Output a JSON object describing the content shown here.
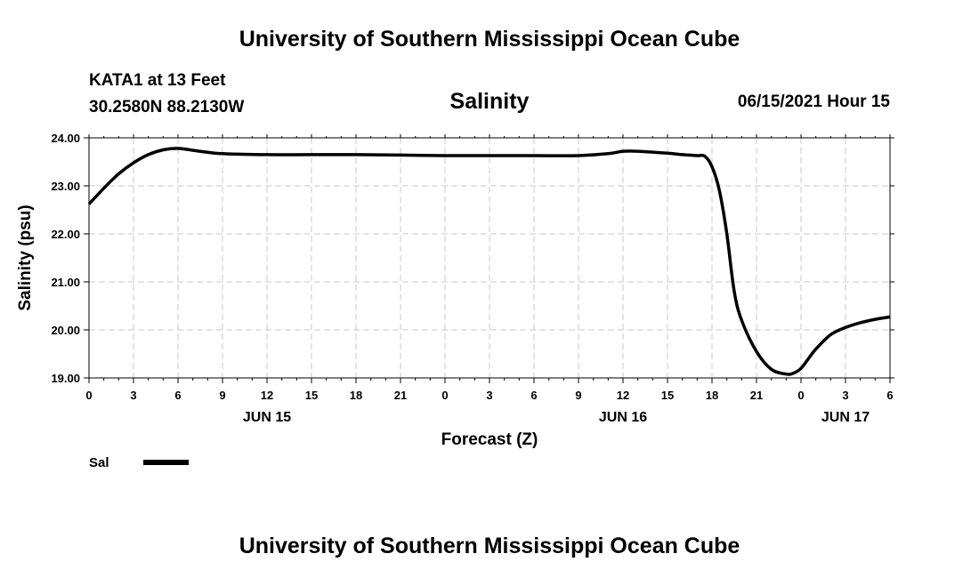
{
  "page": {
    "top_title": "University of Southern Mississippi Ocean Cube",
    "bottom_title": "University of Southern Mississippi Ocean Cube",
    "station_name": "KATA1 at 13 Feet",
    "station_coords": "30.2580N  88.2130W",
    "datetime": "06/15/2021 Hour 15"
  },
  "chart_data": {
    "type": "line",
    "title": "Salinity",
    "xlabel": "Forecast (Z)",
    "ylabel": "Salinity (psu)",
    "ylim": [
      19.0,
      24.0
    ],
    "xlim": [
      0,
      54
    ],
    "grid": true,
    "y_ticks": [
      "19.00",
      "20.00",
      "21.00",
      "22.00",
      "23.00",
      "24.00"
    ],
    "x_tick_labels": [
      "0",
      "3",
      "6",
      "9",
      "12",
      "15",
      "18",
      "21",
      "0",
      "3",
      "6",
      "9",
      "12",
      "15",
      "18",
      "21",
      "0",
      "3",
      "6"
    ],
    "day_labels": [
      {
        "label": "JUN 15",
        "at_hour": 12
      },
      {
        "label": "JUN 16",
        "at_hour": 36
      },
      {
        "label": "JUN 17",
        "at_hour": 51
      }
    ],
    "legend_placement": "bottom-left",
    "series": [
      {
        "name": "Sal",
        "x": [
          0,
          1,
          2,
          3,
          4,
          5,
          6,
          7,
          8,
          9,
          12,
          15,
          18,
          21,
          24,
          27,
          30,
          33,
          35,
          36,
          37,
          39,
          40,
          41,
          41.5,
          42,
          42.5,
          43,
          43.5,
          44,
          45,
          46,
          47,
          47.5,
          48,
          48.5,
          49,
          50,
          51,
          52,
          53,
          54
        ],
        "values": [
          22.62,
          22.95,
          23.25,
          23.48,
          23.65,
          23.75,
          23.78,
          23.74,
          23.7,
          23.67,
          23.65,
          23.65,
          23.65,
          23.64,
          23.63,
          23.63,
          23.63,
          23.63,
          23.67,
          23.72,
          23.72,
          23.68,
          23.65,
          23.63,
          23.62,
          23.4,
          22.9,
          22.0,
          20.8,
          20.2,
          19.55,
          19.18,
          19.08,
          19.1,
          19.2,
          19.4,
          19.6,
          19.9,
          20.05,
          20.15,
          20.22,
          20.27
        ]
      }
    ]
  }
}
